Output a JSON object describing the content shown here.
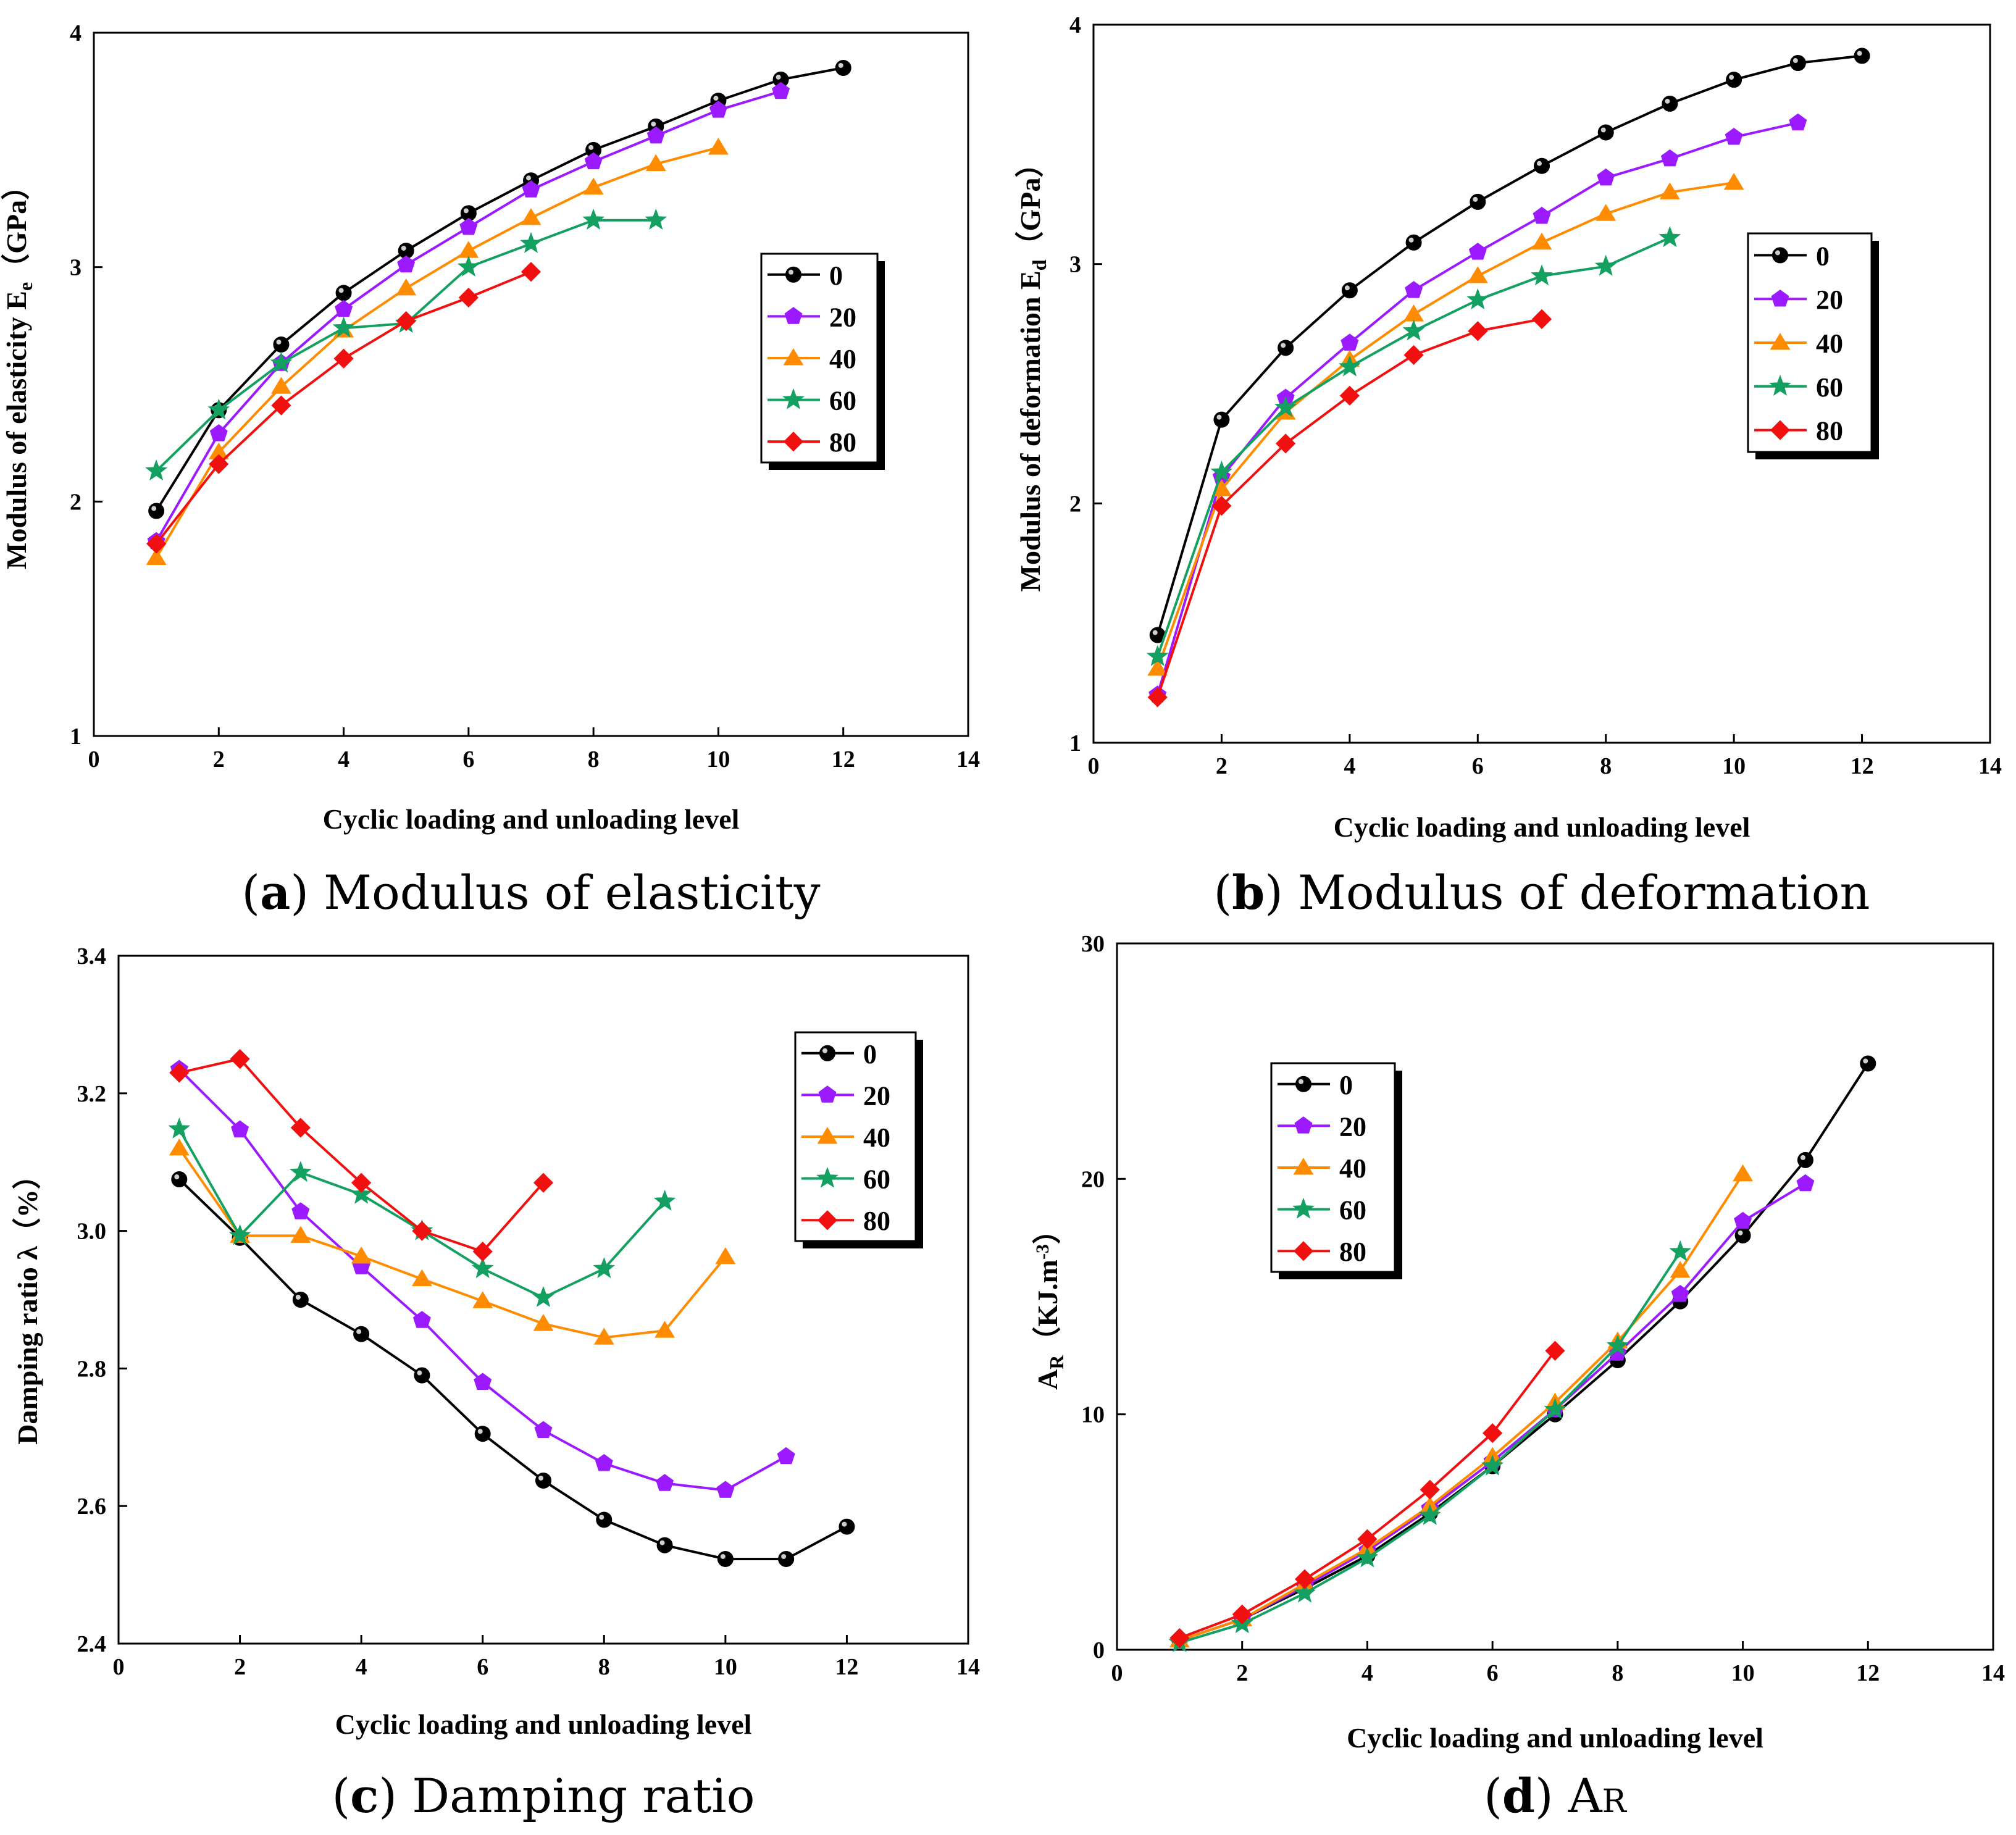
{
  "figure": {
    "colors": {
      "0": "#000000",
      "20": "#9b1aff",
      "40": "#ff8c00",
      "60": "#13a060",
      "80": "#f01010"
    },
    "markers": {
      "0": "circle",
      "20": "pentagon",
      "40": "triangle",
      "60": "star",
      "80": "diamond"
    }
  },
  "chart_data": [
    {
      "id": "a",
      "type": "line",
      "caption": {
        "letter": "a",
        "text": " Modulus of elasticity",
        "open": "(",
        "close": ")"
      },
      "xlabel": "Cyclic loading and unloading level",
      "ylabel": {
        "main": "Modulus of elasticity E",
        "sub": "e",
        "unit": "（GPa）"
      },
      "xlim": [
        0,
        14
      ],
      "ylim": [
        1,
        4
      ],
      "xticks": [
        0,
        2,
        4,
        6,
        8,
        10,
        12,
        14
      ],
      "yticks": [
        1,
        2,
        3,
        4
      ],
      "ytick_labels": [
        "1",
        "2",
        "3",
        "4"
      ],
      "legend": [
        "0",
        "20",
        "40",
        "60",
        "80"
      ],
      "series": [
        {
          "name": "0",
          "x": [
            1,
            2,
            3,
            4,
            5,
            6,
            7,
            8,
            9,
            10,
            11,
            12
          ],
          "y": [
            1.96,
            2.39,
            2.67,
            2.89,
            3.07,
            3.23,
            3.37,
            3.5,
            3.6,
            3.71,
            3.8,
            3.85
          ]
        },
        {
          "name": "20",
          "x": [
            1,
            2,
            3,
            4,
            5,
            6,
            7,
            8,
            9,
            10,
            11
          ],
          "y": [
            1.83,
            2.29,
            2.59,
            2.82,
            3.01,
            3.17,
            3.33,
            3.45,
            3.56,
            3.67,
            3.75
          ]
        },
        {
          "name": "40",
          "x": [
            1,
            2,
            3,
            4,
            5,
            6,
            7,
            8,
            9,
            10
          ],
          "y": [
            1.76,
            2.21,
            2.49,
            2.73,
            2.91,
            3.07,
            3.21,
            3.34,
            3.44,
            3.51
          ]
        },
        {
          "name": "60",
          "x": [
            1,
            2,
            3,
            4,
            5,
            6,
            7,
            8,
            9
          ],
          "y": [
            2.13,
            2.39,
            2.59,
            2.74,
            2.76,
            3.0,
            3.1,
            3.2,
            3.2
          ]
        },
        {
          "name": "80",
          "x": [
            1,
            2,
            3,
            4,
            5,
            6,
            7
          ],
          "y": [
            1.82,
            2.16,
            2.41,
            2.61,
            2.77,
            2.87,
            2.98
          ]
        }
      ]
    },
    {
      "id": "b",
      "type": "line",
      "caption": {
        "letter": "b",
        "text": " Modulus of deformation",
        "open": "(",
        "close": ")"
      },
      "xlabel": "Cyclic loading and unloading level",
      "ylabel": {
        "main": "Modulus of deformation  E",
        "sub": "d",
        "unit": "（GPa）"
      },
      "xlim": [
        0,
        14
      ],
      "ylim": [
        1,
        4
      ],
      "xticks": [
        0,
        2,
        4,
        6,
        8,
        10,
        12,
        14
      ],
      "yticks": [
        1,
        2,
        3,
        4
      ],
      "ytick_labels": [
        "1",
        "2",
        "3",
        "4"
      ],
      "legend": [
        "0",
        "20",
        "40",
        "60",
        "80"
      ],
      "series": [
        {
          "name": "0",
          "x": [
            1,
            2,
            3,
            4,
            5,
            6,
            7,
            8,
            9,
            10,
            11,
            12
          ],
          "y": [
            1.45,
            2.35,
            2.65,
            2.89,
            3.09,
            3.26,
            3.41,
            3.55,
            3.67,
            3.77,
            3.84,
            3.87
          ]
        },
        {
          "name": "20",
          "x": [
            1,
            2,
            3,
            4,
            5,
            6,
            7,
            8,
            9,
            10,
            11
          ],
          "y": [
            1.2,
            2.11,
            2.44,
            2.67,
            2.89,
            3.05,
            3.2,
            3.36,
            3.44,
            3.53,
            3.59
          ]
        },
        {
          "name": "40",
          "x": [
            1,
            2,
            3,
            4,
            5,
            6,
            7,
            8,
            9,
            10
          ],
          "y": [
            1.31,
            2.06,
            2.38,
            2.6,
            2.79,
            2.95,
            3.09,
            3.21,
            3.3,
            3.34
          ]
        },
        {
          "name": "60",
          "x": [
            1,
            2,
            3,
            4,
            5,
            6,
            7,
            8,
            9
          ],
          "y": [
            1.36,
            2.13,
            2.4,
            2.57,
            2.72,
            2.85,
            2.95,
            2.99,
            3.11
          ]
        },
        {
          "name": "80",
          "x": [
            1,
            2,
            3,
            4,
            5,
            6,
            7
          ],
          "y": [
            1.19,
            1.99,
            2.25,
            2.45,
            2.62,
            2.72,
            2.77
          ]
        }
      ]
    },
    {
      "id": "c",
      "type": "line",
      "caption": {
        "letter": "c",
        "text": " Damping ratio",
        "open": "(",
        "close": ")"
      },
      "xlabel": "Cyclic loading and unloading level",
      "ylabel": {
        "main": "Damping ratio λ（%）",
        "sub": "",
        "unit": ""
      },
      "xlim": [
        0,
        14
      ],
      "ylim": [
        2.4,
        3.4
      ],
      "xticks": [
        0,
        2,
        4,
        6,
        8,
        10,
        12,
        14
      ],
      "yticks": [
        2.4,
        2.6,
        2.8,
        3.0,
        3.2,
        3.4
      ],
      "ytick_labels": [
        "2.4",
        "2.6",
        "2.8",
        "3.0",
        "3.2",
        "3.4"
      ],
      "legend": [
        "0",
        "20",
        "40",
        "60",
        "80"
      ],
      "series": [
        {
          "name": "0",
          "x": [
            1,
            2,
            3,
            4,
            5,
            6,
            7,
            8,
            9,
            10,
            11,
            12
          ],
          "y": [
            3.075,
            2.99,
            2.9,
            2.85,
            2.79,
            2.705,
            2.637,
            2.58,
            2.543,
            2.523,
            2.523,
            2.57
          ]
        },
        {
          "name": "20",
          "x": [
            1,
            2,
            3,
            4,
            5,
            6,
            7,
            8,
            9,
            10,
            11
          ],
          "y": [
            3.235,
            3.147,
            3.028,
            2.948,
            2.87,
            2.78,
            2.71,
            2.662,
            2.633,
            2.623,
            2.672
          ]
        },
        {
          "name": "40",
          "x": [
            1,
            2,
            3,
            4,
            5,
            6,
            7,
            8,
            9,
            10
          ],
          "y": [
            3.12,
            2.993,
            2.993,
            2.963,
            2.93,
            2.898,
            2.865,
            2.845,
            2.855,
            2.962
          ]
        },
        {
          "name": "60",
          "x": [
            1,
            2,
            3,
            4,
            5,
            6,
            7,
            8,
            9
          ],
          "y": [
            3.148,
            2.993,
            3.085,
            3.053,
            3.0,
            2.945,
            2.903,
            2.945,
            3.043
          ]
        },
        {
          "name": "80",
          "x": [
            1,
            2,
            3,
            4,
            5,
            6,
            7
          ],
          "y": [
            3.23,
            3.25,
            3.15,
            3.07,
            3.0,
            2.97,
            3.07
          ]
        }
      ]
    },
    {
      "id": "d",
      "type": "line",
      "caption": {
        "letter": "d",
        "text": " A",
        "sub": "R",
        "open": "(",
        "close": ")"
      },
      "xlabel": "Cyclic loading and unloading level",
      "ylabel": {
        "main": "A",
        "sub": "R",
        "unit": "（KJ.m",
        "sup": "-3",
        "end": "）"
      },
      "xlim": [
        0,
        14
      ],
      "ylim": [
        0,
        30
      ],
      "xticks": [
        0,
        2,
        4,
        6,
        8,
        10,
        12,
        14
      ],
      "yticks": [
        0,
        10,
        20,
        30
      ],
      "ytick_labels": [
        "0",
        "10",
        "20",
        "30"
      ],
      "legend": [
        "0",
        "20",
        "40",
        "60",
        "80"
      ],
      "series": [
        {
          "name": "0",
          "x": [
            1,
            2,
            3,
            4,
            5,
            6,
            7,
            8,
            9,
            10,
            11,
            12
          ],
          "y": [
            0.4,
            1.3,
            2.6,
            4.0,
            5.8,
            7.8,
            10.0,
            12.3,
            14.8,
            17.6,
            20.8,
            24.9
          ]
        },
        {
          "name": "20",
          "x": [
            1,
            2,
            3,
            4,
            5,
            6,
            7,
            8,
            9,
            10,
            11
          ],
          "y": [
            0.4,
            1.3,
            2.7,
            4.2,
            6.0,
            8.0,
            10.2,
            12.6,
            15.1,
            18.2,
            19.8
          ]
        },
        {
          "name": "40",
          "x": [
            1,
            2,
            3,
            4,
            5,
            6,
            7,
            8,
            9,
            10
          ],
          "y": [
            0.4,
            1.3,
            2.8,
            4.3,
            6.1,
            8.2,
            10.5,
            13.1,
            16.1,
            20.2
          ]
        },
        {
          "name": "60",
          "x": [
            1,
            2,
            3,
            4,
            5,
            6,
            7,
            8,
            9
          ],
          "y": [
            0.3,
            1.1,
            2.4,
            3.9,
            5.7,
            7.8,
            10.2,
            12.9,
            16.9
          ]
        },
        {
          "name": "80",
          "x": [
            1,
            2,
            3,
            4,
            5,
            6,
            7
          ],
          "y": [
            0.5,
            1.5,
            3.0,
            4.7,
            6.8,
            9.2,
            12.7
          ]
        }
      ]
    }
  ]
}
